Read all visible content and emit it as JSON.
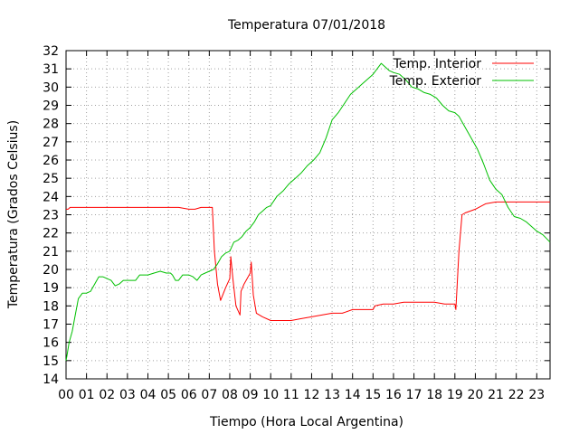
{
  "chart_data": {
    "type": "line",
    "title": "Temperatura 07/01/2018",
    "xlabel": "Tiempo (Hora Local Argentina)",
    "ylabel": "Temperatura (Grados Celsius)",
    "xlim": [
      0,
      23.65
    ],
    "ylim": [
      14,
      32
    ],
    "x_ticks": [
      "00",
      "01",
      "02",
      "03",
      "04",
      "05",
      "06",
      "07",
      "08",
      "09",
      "10",
      "11",
      "12",
      "13",
      "14",
      "15",
      "16",
      "17",
      "18",
      "19",
      "20",
      "21",
      "22",
      "23"
    ],
    "y_ticks": [
      14,
      15,
      16,
      17,
      18,
      19,
      20,
      21,
      22,
      23,
      24,
      25,
      26,
      27,
      28,
      29,
      30,
      31,
      32
    ],
    "grid": true,
    "legend_position": "top-right",
    "series": [
      {
        "name": "Temp. Interior",
        "color": "#ff0000",
        "x": [
          0,
          0.1,
          0.2,
          0.5,
          1,
          2,
          3,
          4,
          5,
          5.5,
          6,
          6.3,
          6.6,
          7,
          7.15,
          7.25,
          7.4,
          7.55,
          7.8,
          8.0,
          8.05,
          8.15,
          8.3,
          8.5,
          8.55,
          8.7,
          9.0,
          9.05,
          9.15,
          9.3,
          9.6,
          10,
          10.5,
          11,
          11.5,
          12,
          12.5,
          13,
          13.5,
          14,
          14.5,
          15,
          15.1,
          15.5,
          16,
          16.5,
          17,
          17.5,
          18,
          18.5,
          19,
          19.05,
          19.2,
          19.35,
          19.5,
          20,
          20.5,
          21,
          22,
          23,
          23.65
        ],
        "values": [
          23.3,
          23.3,
          23.4,
          23.4,
          23.4,
          23.4,
          23.4,
          23.4,
          23.4,
          23.4,
          23.3,
          23.3,
          23.4,
          23.4,
          23.4,
          21.0,
          19.2,
          18.3,
          19.0,
          19.5,
          20.7,
          19.5,
          18.0,
          17.5,
          18.8,
          19.2,
          19.8,
          20.4,
          18.6,
          17.6,
          17.4,
          17.2,
          17.2,
          17.2,
          17.3,
          17.4,
          17.5,
          17.6,
          17.6,
          17.8,
          17.8,
          17.8,
          18.0,
          18.1,
          18.1,
          18.2,
          18.2,
          18.2,
          18.2,
          18.1,
          18.1,
          17.8,
          21.0,
          23.0,
          23.1,
          23.3,
          23.6,
          23.7,
          23.7,
          23.7,
          23.7
        ]
      },
      {
        "name": "Temp. Exterior",
        "color": "#00c000",
        "x": [
          0,
          0.05,
          0.15,
          0.3,
          0.45,
          0.6,
          0.8,
          1.0,
          1.2,
          1.4,
          1.6,
          1.8,
          2.0,
          2.2,
          2.4,
          2.6,
          2.8,
          3.0,
          3.2,
          3.4,
          3.6,
          3.8,
          4.0,
          4.3,
          4.6,
          4.9,
          5.1,
          5.2,
          5.35,
          5.5,
          5.7,
          6.0,
          6.2,
          6.4,
          6.6,
          6.8,
          7.0,
          7.2,
          7.4,
          7.6,
          7.8,
          8.0,
          8.2,
          8.4,
          8.6,
          8.8,
          9.0,
          9.2,
          9.4,
          9.6,
          9.8,
          10.0,
          10.3,
          10.6,
          10.9,
          11.2,
          11.5,
          11.8,
          12.1,
          12.4,
          12.7,
          13.0,
          13.3,
          13.6,
          13.9,
          14.2,
          14.5,
          14.8,
          15.0,
          15.2,
          15.4,
          15.6,
          15.8,
          16.0,
          16.3,
          16.6,
          16.9,
          17.2,
          17.5,
          17.8,
          18.1,
          18.4,
          18.7,
          19.0,
          19.2,
          19.5,
          19.8,
          20.1,
          20.4,
          20.7,
          21.0,
          21.3,
          21.6,
          21.9,
          22.2,
          22.5,
          22.8,
          23.0,
          23.3,
          23.65
        ],
        "values": [
          15.0,
          15.3,
          16.0,
          16.6,
          17.5,
          18.4,
          18.7,
          18.7,
          18.8,
          19.2,
          19.6,
          19.6,
          19.5,
          19.4,
          19.1,
          19.2,
          19.4,
          19.4,
          19.4,
          19.4,
          19.7,
          19.7,
          19.7,
          19.8,
          19.9,
          19.8,
          19.8,
          19.7,
          19.4,
          19.4,
          19.7,
          19.7,
          19.6,
          19.4,
          19.7,
          19.8,
          19.9,
          20.0,
          20.3,
          20.7,
          20.9,
          21.0,
          21.5,
          21.6,
          21.8,
          22.1,
          22.3,
          22.6,
          23.0,
          23.2,
          23.4,
          23.5,
          24.0,
          24.3,
          24.7,
          25.0,
          25.3,
          25.7,
          26.0,
          26.4,
          27.2,
          28.2,
          28.6,
          29.1,
          29.6,
          29.9,
          30.2,
          30.5,
          30.7,
          31.0,
          31.3,
          31.1,
          30.9,
          30.8,
          30.7,
          30.4,
          30.0,
          29.9,
          29.7,
          29.6,
          29.4,
          29.0,
          28.7,
          28.6,
          28.4,
          27.8,
          27.2,
          26.6,
          25.8,
          24.9,
          24.4,
          24.1,
          23.4,
          22.9,
          22.8,
          22.6,
          22.3,
          22.1,
          21.9,
          21.5
        ]
      }
    ]
  }
}
